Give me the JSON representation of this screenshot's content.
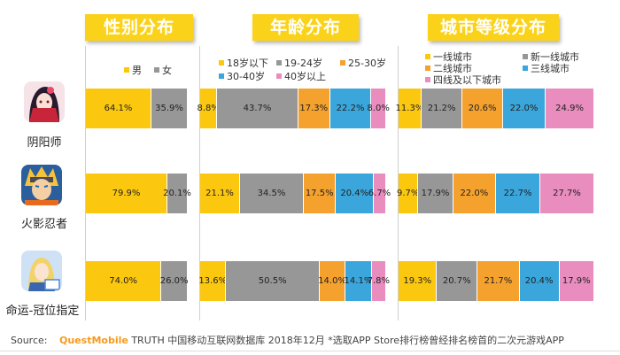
{
  "headers": [
    "性别分布",
    "年龄分布",
    "城市等级分布"
  ],
  "apps": [
    {
      "name": "阴阳师",
      "icon": "onmyoji-game-icon"
    },
    {
      "name": "火影忍者",
      "icon": "naruto-game-icon"
    },
    {
      "name": "命运-冠位指定",
      "icon": "fate-grand-order-game-icon"
    }
  ],
  "colors": {
    "yellow": "#fcc80f",
    "gray": "#979797",
    "orange": "#f5a12e",
    "blue": "#3aa6dc",
    "pink": "#e98cbe",
    "header": "#fbd21a"
  },
  "source": {
    "prefix": "Source:",
    "brand": "QuestMobile",
    "text": "TRUTH 中国移动互联网数据库 2018年12月   *选取APP Store排行榜曾经排名榜首的二次元游戏APP"
  },
  "chart_data": [
    {
      "type": "bar",
      "title": "性别分布",
      "categories": [
        "阴阳师",
        "火影忍者",
        "命运-冠位指定"
      ],
      "series": [
        {
          "name": "男",
          "color": "#fcc80f",
          "values": [
            64.1,
            79.9,
            74.0
          ],
          "labels": [
            "64.1%",
            "79.9%",
            "74.0%"
          ]
        },
        {
          "name": "女",
          "color": "#979797",
          "values": [
            35.9,
            20.1,
            26.0
          ],
          "labels": [
            "35.9%",
            "20.1%",
            "26.0%"
          ]
        }
      ]
    },
    {
      "type": "bar",
      "title": "年龄分布",
      "categories": [
        "阴阳师",
        "火影忍者",
        "命运-冠位指定"
      ],
      "series": [
        {
          "name": "18岁以下",
          "color": "#fcc80f",
          "values": [
            8.8,
            21.1,
            13.6
          ],
          "labels": [
            "8.8%",
            "21.1%",
            "13.6%"
          ]
        },
        {
          "name": "19-24岁",
          "color": "#979797",
          "values": [
            43.7,
            34.5,
            50.5
          ],
          "labels": [
            "43.7%",
            "34.5%",
            "50.5%"
          ]
        },
        {
          "name": "25-30岁",
          "color": "#f5a12e",
          "values": [
            17.3,
            17.5,
            14.0
          ],
          "labels": [
            "17.3%",
            "17.5%",
            "14.0%"
          ]
        },
        {
          "name": "30-40岁",
          "color": "#3aa6dc",
          "values": [
            22.2,
            20.4,
            14.1
          ],
          "labels": [
            "22.2%",
            "20.4%",
            "14.1%"
          ]
        },
        {
          "name": "40岁以上",
          "color": "#e98cbe",
          "values": [
            8.0,
            6.7,
            7.8
          ],
          "labels": [
            "8.0%",
            "6.7%",
            "7.8%"
          ]
        }
      ]
    },
    {
      "type": "bar",
      "title": "城市等级分布",
      "categories": [
        "阴阳师",
        "火影忍者",
        "命运-冠位指定"
      ],
      "series": [
        {
          "name": "一线城市",
          "color": "#fcc80f",
          "values": [
            11.3,
            9.7,
            19.3
          ],
          "labels": [
            "11.3%",
            "9.7%",
            "19.3%"
          ]
        },
        {
          "name": "新一线城市",
          "color": "#979797",
          "values": [
            21.2,
            17.9,
            20.7
          ],
          "labels": [
            "21.2%",
            "17.9%",
            "20.7%"
          ]
        },
        {
          "name": "二线城市",
          "color": "#f5a12e",
          "values": [
            20.6,
            22.0,
            21.7
          ],
          "labels": [
            "20.6%",
            "22.0%",
            "21.7%"
          ]
        },
        {
          "name": "三线城市",
          "color": "#3aa6dc",
          "values": [
            22.0,
            22.7,
            20.4
          ],
          "labels": [
            "22.0%",
            "22.7%",
            "20.4%"
          ]
        },
        {
          "name": "四线及以下城市",
          "color": "#e98cbe",
          "values": [
            24.9,
            27.7,
            17.9
          ],
          "labels": [
            "24.9%",
            "27.7%",
            "17.9%"
          ]
        }
      ]
    }
  ]
}
